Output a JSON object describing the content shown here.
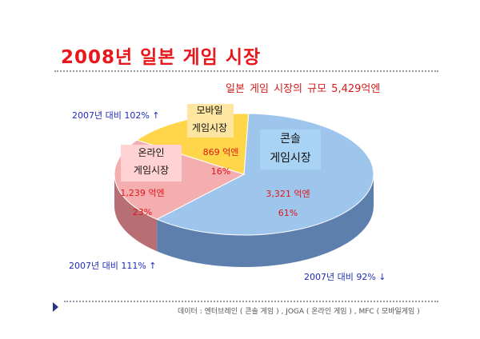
{
  "title": "2008년 일본 게임 시장",
  "subtitle": "일본 게임 시장의 규모   5,429억엔",
  "notes": {
    "mobile": "2007년 대비 102%  ↑",
    "online": "2007년 대비 111%  ↑",
    "console": "2007년 대비 92%   ↓"
  },
  "footer": "데이터 : 엔터브레인 ( 콘솔 게임 ) , JOGA ( 온라인 게임 ) , MFC ( 모바일게임 )",
  "chart_data": {
    "type": "pie",
    "total_label": "5,429억엔",
    "series": [
      {
        "label_lines": [
          "콘솔",
          "게임시장"
        ],
        "value_label": "3,321 억엔",
        "percent_label": "61%",
        "value": 3321,
        "percent": 61,
        "color": "#9ec5ec",
        "side_color": "#5d7fae"
      },
      {
        "label_lines": [
          "온라인",
          "게임시장"
        ],
        "value_label": "1,239 억엔",
        "percent_label": "23%",
        "value": 1239,
        "percent": 23,
        "color": "#f4aeb0",
        "side_color": "#b76f74"
      },
      {
        "label_lines": [
          "모바일",
          "게임시장"
        ],
        "value_label": "869 억엔",
        "percent_label": "16%",
        "value": 869,
        "percent": 16,
        "color": "#ffd54a",
        "side_color": "#c9a020"
      }
    ]
  },
  "colors": {
    "title": "#e8171b",
    "note": "#1f2bb8",
    "value_text": "#e0161b"
  }
}
